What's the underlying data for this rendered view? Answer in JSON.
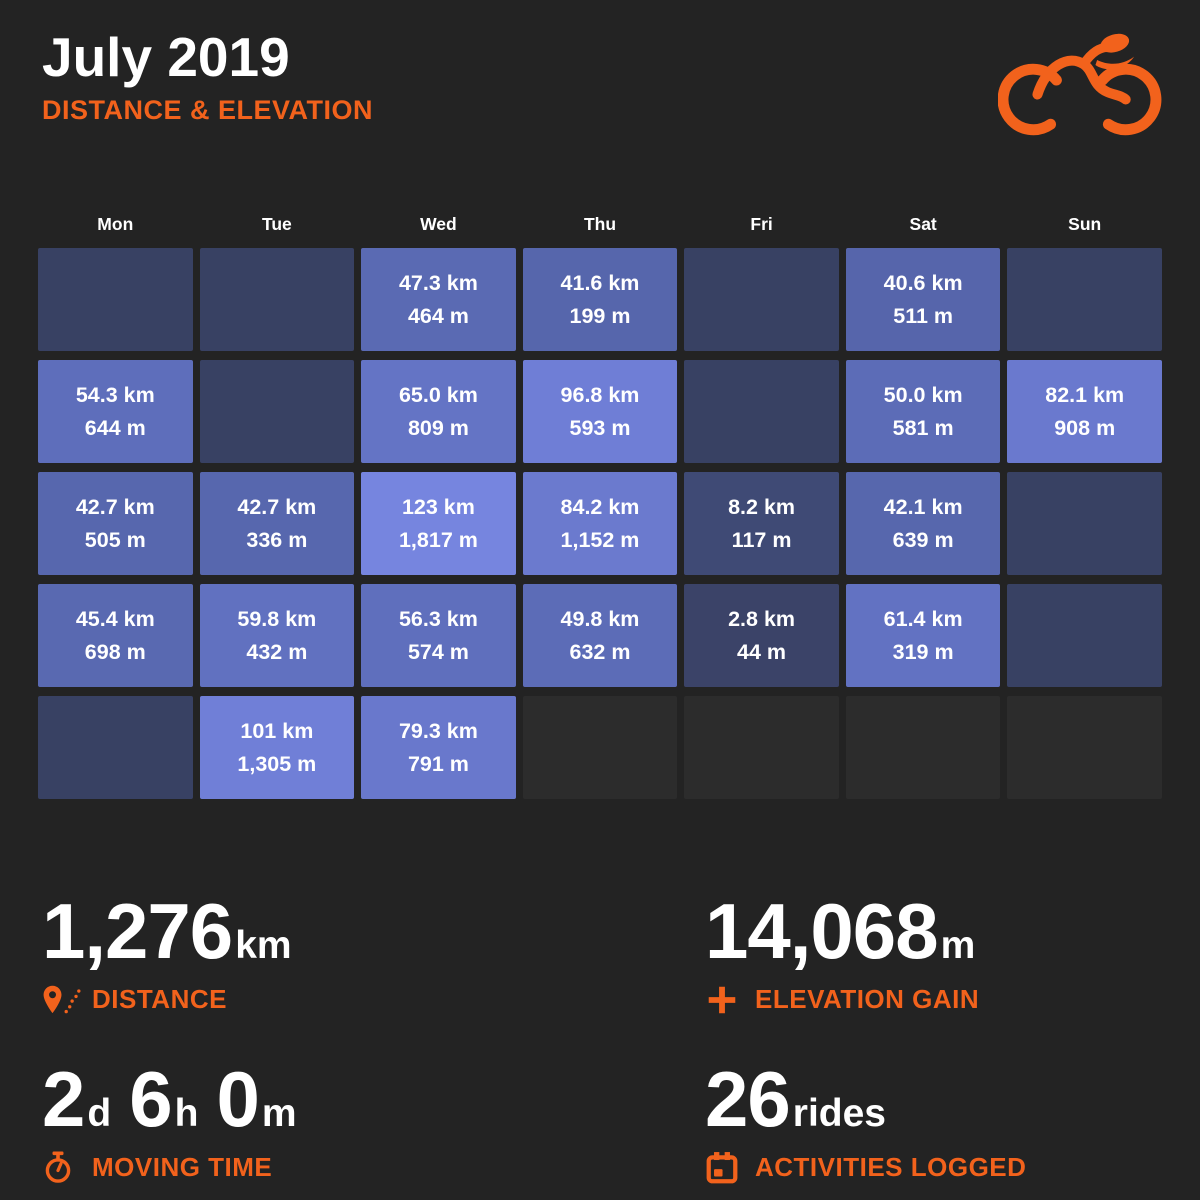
{
  "header": {
    "title": "July 2019",
    "subtitle": "DISTANCE & ELEVATION"
  },
  "colors": {
    "background": "#232323",
    "accent": "#f2621c",
    "text": "#ffffff",
    "cell_no_ride": "#384163",
    "cell_out_of_month": "#2c2c2c",
    "cell_scale_low": "#3b4368",
    "cell_scale_high": "#7685df"
  },
  "chart_data": {
    "type": "heatmap",
    "title": "July 2019 — Distance & Elevation",
    "columns": [
      "Mon",
      "Tue",
      "Wed",
      "Thu",
      "Fri",
      "Sat",
      "Sun"
    ],
    "unit_distance": "km",
    "unit_elevation": "m",
    "weeks": [
      [
        {
          "state": "no_ride"
        },
        {
          "state": "no_ride"
        },
        {
          "state": "ride",
          "distance_km": 47.3,
          "elevation_m": 464,
          "distance_label": "47.3 km",
          "elevation_label": "464 m",
          "color": "#5a6ab3"
        },
        {
          "state": "ride",
          "distance_km": 41.6,
          "elevation_m": 199,
          "distance_label": "41.6 km",
          "elevation_label": "199 m",
          "color": "#5666ac"
        },
        {
          "state": "no_ride"
        },
        {
          "state": "ride",
          "distance_km": 40.6,
          "elevation_m": 511,
          "distance_label": "40.6 km",
          "elevation_label": "511 m",
          "color": "#5665ab"
        },
        {
          "state": "no_ride"
        }
      ],
      [
        {
          "state": "ride",
          "distance_km": 54.3,
          "elevation_m": 644,
          "distance_label": "54.3 km",
          "elevation_label": "644 m",
          "color": "#5e6ebb"
        },
        {
          "state": "no_ride"
        },
        {
          "state": "ride",
          "distance_km": 65.0,
          "elevation_m": 809,
          "distance_label": "65.0 km",
          "elevation_label": "809 m",
          "color": "#6474c5"
        },
        {
          "state": "ride",
          "distance_km": 96.8,
          "elevation_m": 593,
          "distance_label": "96.8 km",
          "elevation_label": "593 m",
          "color": "#6f7ed6"
        },
        {
          "state": "no_ride"
        },
        {
          "state": "ride",
          "distance_km": 50.0,
          "elevation_m": 581,
          "distance_label": "50.0 km",
          "elevation_label": "581 m",
          "color": "#5c6cb7"
        },
        {
          "state": "ride",
          "distance_km": 82.1,
          "elevation_m": 908,
          "distance_label": "82.1 km",
          "elevation_label": "908 m",
          "color": "#6a79ce"
        }
      ],
      [
        {
          "state": "ride",
          "distance_km": 42.7,
          "elevation_m": 505,
          "distance_label": "42.7 km",
          "elevation_label": "505 m",
          "color": "#5767ae"
        },
        {
          "state": "ride",
          "distance_km": 42.7,
          "elevation_m": 336,
          "distance_label": "42.7 km",
          "elevation_label": "336 m",
          "color": "#5767ae"
        },
        {
          "state": "ride",
          "distance_km": 123,
          "elevation_m": 1817,
          "distance_label": "123 km",
          "elevation_label": "1,817 m",
          "color": "#7685df"
        },
        {
          "state": "ride",
          "distance_km": 84.2,
          "elevation_m": 1152,
          "distance_label": "84.2 km",
          "elevation_label": "1,152 m",
          "color": "#6b7ace"
        },
        {
          "state": "ride",
          "distance_km": 8.2,
          "elevation_m": 117,
          "distance_label": "8.2 km",
          "elevation_label": "117 m",
          "color": "#3f4a75"
        },
        {
          "state": "ride",
          "distance_km": 42.1,
          "elevation_m": 639,
          "distance_label": "42.1 km",
          "elevation_label": "639 m",
          "color": "#5767ad"
        },
        {
          "state": "no_ride"
        }
      ],
      [
        {
          "state": "ride",
          "distance_km": 45.4,
          "elevation_m": 698,
          "distance_label": "45.4 km",
          "elevation_label": "698 m",
          "color": "#5969b1"
        },
        {
          "state": "ride",
          "distance_km": 59.8,
          "elevation_m": 432,
          "distance_label": "59.8 km",
          "elevation_label": "432 m",
          "color": "#6171c0"
        },
        {
          "state": "ride",
          "distance_km": 56.3,
          "elevation_m": 574,
          "distance_label": "56.3 km",
          "elevation_label": "574 m",
          "color": "#5f6fbd"
        },
        {
          "state": "ride",
          "distance_km": 49.8,
          "elevation_m": 632,
          "distance_label": "49.8 km",
          "elevation_label": "632 m",
          "color": "#5c6cb7"
        },
        {
          "state": "ride",
          "distance_km": 2.8,
          "elevation_m": 44,
          "distance_label": "2.8 km",
          "elevation_label": "44 m",
          "color": "#3b4368"
        },
        {
          "state": "ride",
          "distance_km": 61.4,
          "elevation_m": 319,
          "distance_label": "61.4 km",
          "elevation_label": "319 m",
          "color": "#6272c2"
        },
        {
          "state": "no_ride"
        }
      ],
      [
        {
          "state": "no_ride"
        },
        {
          "state": "ride",
          "distance_km": 101,
          "elevation_m": 1305,
          "distance_label": "101 km",
          "elevation_label": "1,305 m",
          "color": "#707fd7"
        },
        {
          "state": "ride",
          "distance_km": 79.3,
          "elevation_m": 791,
          "distance_label": "79.3 km",
          "elevation_label": "791 m",
          "color": "#6978cc"
        },
        {
          "state": "out_of_month"
        },
        {
          "state": "out_of_month"
        },
        {
          "state": "out_of_month"
        },
        {
          "state": "out_of_month"
        }
      ]
    ],
    "totals": {
      "distance_km": 1276,
      "elevation_gain_m": 14068,
      "moving_time": "2d 6h 0m",
      "rides": 26
    }
  },
  "stats": [
    {
      "icon": "route-pin-icon",
      "label": "DISTANCE",
      "parts": [
        {
          "value": "1,276",
          "unit": "km"
        }
      ]
    },
    {
      "icon": "plus-icon",
      "label": "ELEVATION GAIN",
      "parts": [
        {
          "value": "14,068",
          "unit": "m"
        }
      ]
    },
    {
      "icon": "stopwatch-icon",
      "label": "MOVING TIME",
      "parts": [
        {
          "value": "2",
          "unit": "d"
        },
        {
          "value": "6",
          "unit": "h"
        },
        {
          "value": "0",
          "unit": "m"
        }
      ]
    },
    {
      "icon": "calendar-icon",
      "label": "ACTIVITIES LOGGED",
      "parts": [
        {
          "value": "26",
          "unit": "rides"
        }
      ]
    }
  ]
}
